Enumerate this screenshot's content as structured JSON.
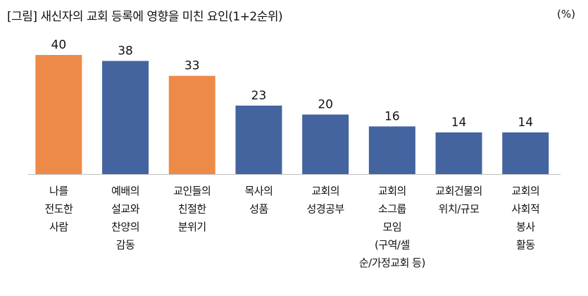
{
  "chart_data": {
    "type": "bar",
    "title": "[그림] 새신자의 교회 등록에 영향을 미친 요인(1+2순위)",
    "unit": "(%)",
    "categories": [
      [
        "나를",
        "전도한",
        "사람"
      ],
      [
        "예배의",
        "설교와",
        "찬양의",
        "감동"
      ],
      [
        "교인들의",
        "친절한",
        "분위기"
      ],
      [
        "목사의",
        "성품"
      ],
      [
        "교회의",
        "성경공부"
      ],
      [
        "교회의",
        "소그룹",
        "모임",
        "(구역/셀",
        "순/가정교회 등)"
      ],
      [
        "교회건물의",
        "위치/규모"
      ],
      [
        "교회의",
        "사회적",
        "봉사",
        "활동"
      ]
    ],
    "values": [
      40,
      38,
      33,
      23,
      20,
      16,
      14,
      14
    ],
    "highlight": [
      true,
      false,
      true,
      false,
      false,
      false,
      false,
      false
    ],
    "ylim": [
      0,
      40
    ],
    "grid": false,
    "colors": {
      "highlight": "#EE8A48",
      "default": "#4464A0",
      "axis": "#BFBFBF"
    }
  }
}
